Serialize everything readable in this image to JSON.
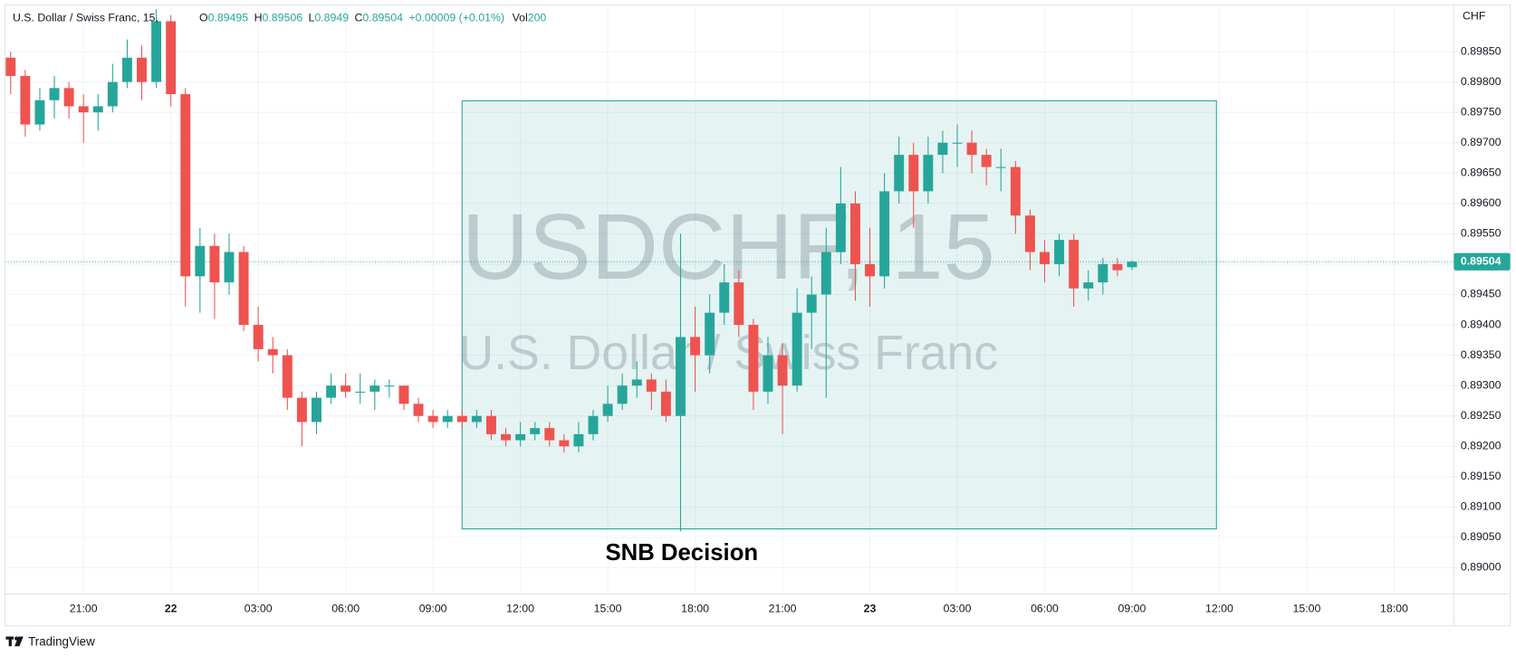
{
  "chart_data": {
    "type": "candlestick",
    "title": "U.S. Dollar / Swiss Franc, 15,",
    "ohlc_labels": [
      "O",
      "H",
      "L",
      "C"
    ],
    "legend_values": [
      0.89495,
      0.89506,
      0.8949,
      0.89504
    ],
    "change": "+0.00009 (+0.01%)",
    "volume_label": "Vol",
    "volume": 200,
    "currency": "CHF",
    "watermark_symbol": "USDCHF, 15",
    "watermark_description": "U.S. Dollar / Swiss Franc",
    "annotation": "SNB Decision",
    "branding": "TradingView",
    "up_color": "#26a69a",
    "down_color": "#ef5350",
    "grid": true,
    "last_price": 0.89504,
    "rectangle": {
      "x": [
        34.0,
        59.9
      ],
      "y": [
        0.89064,
        0.89769
      ]
    },
    "x": [
      18.5,
      19,
      19.5,
      20,
      20.5,
      21,
      21.5,
      22,
      22.5,
      23,
      23.5,
      24,
      24.5,
      25,
      25.5,
      26,
      26.5,
      27,
      27.5,
      28,
      28.5,
      29,
      29.5,
      30,
      30.5,
      31,
      31.5,
      32,
      32.5,
      33,
      33.5,
      34,
      34.5,
      35,
      35.5,
      36,
      36.5,
      37,
      37.5,
      38,
      38.5,
      39,
      39.5,
      40,
      40.5,
      41,
      41.5,
      42,
      42.5,
      43,
      43.5,
      44,
      44.5,
      45,
      45.5,
      46,
      46.5,
      47,
      47.5,
      48,
      48.5,
      49,
      49.5,
      50,
      50.5,
      51,
      51.5,
      52,
      52.5,
      53,
      53.5,
      54,
      54.5,
      55,
      55.5,
      56,
      56.5,
      57
    ],
    "open": [
      0.8984,
      0.8981,
      0.8973,
      0.8977,
      0.8979,
      0.8976,
      0.8975,
      0.8976,
      0.898,
      0.8984,
      0.898,
      0.899,
      0.8978,
      0.8948,
      0.8953,
      0.8947,
      0.8952,
      0.894,
      0.8936,
      0.8935,
      0.8928,
      0.8924,
      0.8928,
      0.893,
      0.8929,
      0.8929,
      0.893,
      0.893,
      0.8927,
      0.8925,
      0.8924,
      0.8925,
      0.8924,
      0.8925,
      0.8922,
      0.8921,
      0.8922,
      0.8923,
      0.8921,
      0.892,
      0.8922,
      0.8925,
      0.8927,
      0.893,
      0.8931,
      0.8929,
      0.8925,
      0.8938,
      0.8935,
      0.8942,
      0.8947,
      0.894,
      0.8929,
      0.8935,
      0.893,
      0.8942,
      0.8945,
      0.8952,
      0.896,
      0.895,
      0.8948,
      0.8962,
      0.8968,
      0.8962,
      0.8968,
      0.897,
      0.897,
      0.8968,
      0.8966,
      0.8966,
      0.8958,
      0.8952,
      0.895,
      0.8954,
      0.8946,
      0.8947,
      0.895,
      0.89495
    ],
    "high": [
      0.8985,
      0.8982,
      0.8979,
      0.8981,
      0.898,
      0.8978,
      0.8978,
      0.8983,
      0.8987,
      0.8986,
      0.8992,
      0.8991,
      0.8979,
      0.8956,
      0.8955,
      0.8955,
      0.8953,
      0.8943,
      0.8938,
      0.8936,
      0.8929,
      0.8929,
      0.8932,
      0.8932,
      0.8932,
      0.8931,
      0.8931,
      0.893,
      0.8928,
      0.8926,
      0.8926,
      0.8926,
      0.8926,
      0.8926,
      0.8923,
      0.8924,
      0.8924,
      0.8924,
      0.8922,
      0.8924,
      0.8926,
      0.893,
      0.8932,
      0.8934,
      0.8932,
      0.8931,
      0.8955,
      0.8943,
      0.8945,
      0.895,
      0.8949,
      0.8941,
      0.8938,
      0.8937,
      0.8946,
      0.8948,
      0.8956,
      0.8966,
      0.8962,
      0.8956,
      0.8965,
      0.8971,
      0.897,
      0.8971,
      0.8972,
      0.8973,
      0.8972,
      0.8969,
      0.8969,
      0.8967,
      0.8959,
      0.8954,
      0.8955,
      0.8955,
      0.8949,
      0.8951,
      0.8951,
      0.89506
    ],
    "low": [
      0.8978,
      0.8971,
      0.8972,
      0.8974,
      0.8974,
      0.897,
      0.8972,
      0.8975,
      0.8979,
      0.8977,
      0.8979,
      0.8976,
      0.8943,
      0.8942,
      0.8941,
      0.8945,
      0.8939,
      0.8934,
      0.8932,
      0.8926,
      0.892,
      0.8922,
      0.8927,
      0.8928,
      0.8927,
      0.8926,
      0.8928,
      0.8926,
      0.8924,
      0.8923,
      0.8923,
      0.8923,
      0.8923,
      0.8921,
      0.892,
      0.892,
      0.8921,
      0.892,
      0.8919,
      0.8919,
      0.8921,
      0.8924,
      0.8926,
      0.8928,
      0.8926,
      0.8924,
      0.8906,
      0.8929,
      0.8932,
      0.894,
      0.8938,
      0.8926,
      0.8927,
      0.8922,
      0.8929,
      0.8936,
      0.8928,
      0.895,
      0.8944,
      0.8943,
      0.8946,
      0.896,
      0.8956,
      0.896,
      0.8965,
      0.8966,
      0.8965,
      0.8963,
      0.8962,
      0.8955,
      0.8949,
      0.8947,
      0.8948,
      0.8943,
      0.8944,
      0.8945,
      0.8948,
      0.8949
    ],
    "close": [
      0.8981,
      0.8973,
      0.8977,
      0.8979,
      0.8976,
      0.8975,
      0.8976,
      0.898,
      0.8984,
      0.898,
      0.899,
      0.8978,
      0.8948,
      0.8953,
      0.8947,
      0.8952,
      0.894,
      0.8936,
      0.8935,
      0.8928,
      0.8924,
      0.8928,
      0.893,
      0.8929,
      0.8929,
      0.893,
      0.893,
      0.8927,
      0.8925,
      0.8924,
      0.8925,
      0.8924,
      0.8925,
      0.8922,
      0.8921,
      0.8922,
      0.8923,
      0.8921,
      0.892,
      0.8922,
      0.8925,
      0.8927,
      0.893,
      0.8931,
      0.8929,
      0.8925,
      0.8938,
      0.8935,
      0.8942,
      0.8947,
      0.894,
      0.8929,
      0.8935,
      0.893,
      0.8942,
      0.8945,
      0.8952,
      0.896,
      0.895,
      0.8948,
      0.8962,
      0.8968,
      0.8962,
      0.8968,
      0.897,
      0.897,
      0.8968,
      0.8966,
      0.8966,
      0.8958,
      0.8952,
      0.895,
      0.8954,
      0.8946,
      0.8947,
      0.895,
      0.8949,
      0.89504
    ],
    "xlim": [
      18.3,
      68.05
    ],
    "ylim": [
      0.88957,
      0.89927
    ],
    "xticks": [
      {
        "value": 21,
        "label": "21:00"
      },
      {
        "value": 24,
        "label": "22"
      },
      {
        "value": 27,
        "label": "03:00"
      },
      {
        "value": 30,
        "label": "06:00"
      },
      {
        "value": 33,
        "label": "09:00"
      },
      {
        "value": 36,
        "label": "12:00"
      },
      {
        "value": 39,
        "label": "15:00"
      },
      {
        "value": 42,
        "label": "18:00"
      },
      {
        "value": 45,
        "label": "21:00"
      },
      {
        "value": 48,
        "label": "23"
      },
      {
        "value": 51,
        "label": "03:00"
      },
      {
        "value": 54,
        "label": "06:00"
      },
      {
        "value": 57,
        "label": "09:00"
      },
      {
        "value": 60,
        "label": "12:00"
      },
      {
        "value": 63,
        "label": "15:00"
      },
      {
        "value": 66,
        "label": "18:00"
      }
    ],
    "yticks": [
      {
        "value": 0.89,
        "label": "0.89000"
      },
      {
        "value": 0.8905,
        "label": "0.89050"
      },
      {
        "value": 0.891,
        "label": "0.89100"
      },
      {
        "value": 0.8915,
        "label": "0.89150"
      },
      {
        "value": 0.892,
        "label": "0.89200"
      },
      {
        "value": 0.8925,
        "label": "0.89250"
      },
      {
        "value": 0.893,
        "label": "0.89300"
      },
      {
        "value": 0.8935,
        "label": "0.89350"
      },
      {
        "value": 0.894,
        "label": "0.89400"
      },
      {
        "value": 0.8945,
        "label": "0.89450"
      },
      {
        "value": 0.895,
        "label": "0.89500"
      },
      {
        "value": 0.8955,
        "label": "0.89550"
      },
      {
        "value": 0.896,
        "label": "0.89600"
      },
      {
        "value": 0.8965,
        "label": "0.89650"
      },
      {
        "value": 0.897,
        "label": "0.89700"
      },
      {
        "value": 0.8975,
        "label": "0.89750"
      },
      {
        "value": 0.898,
        "label": "0.89800"
      },
      {
        "value": 0.8985,
        "label": "0.89850"
      }
    ]
  }
}
